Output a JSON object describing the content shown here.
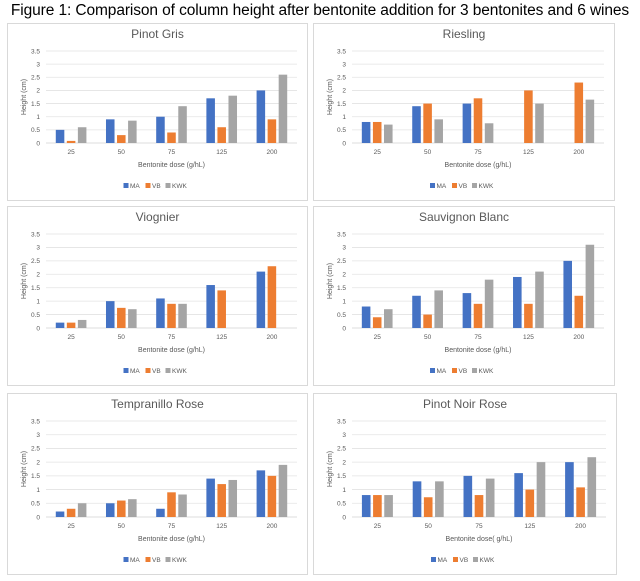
{
  "figure_title": "Figure 1: Comparison of column height after bentonite addition for 3 bentonites and 6 wines",
  "colors": {
    "MA": "#4472C4",
    "VB": "#ED7D31",
    "KWK": "#A5A5A5"
  },
  "chart_data": [
    {
      "type": "bar",
      "title": "Pinot Gris",
      "categories": [
        "25",
        "50",
        "75",
        "125",
        "200"
      ],
      "xlabel": "Bentonite dose (g/hL)",
      "ylabel": "Height (cm)",
      "ylim": [
        0,
        3.5
      ],
      "yticks": [
        "0",
        "0.5",
        "1",
        "1.5",
        "2",
        "2.5",
        "3",
        "3.5"
      ],
      "grid": true,
      "legend": "bottom",
      "series": [
        {
          "name": "MA",
          "values": [
            0.5,
            0.9,
            1.0,
            1.7,
            2.0
          ]
        },
        {
          "name": "VB",
          "values": [
            0.08,
            0.3,
            0.4,
            0.6,
            0.9
          ]
        },
        {
          "name": "KWK",
          "values": [
            0.6,
            0.85,
            1.4,
            1.8,
            2.6
          ]
        }
      ]
    },
    {
      "type": "bar",
      "title": "Riesling",
      "categories": [
        "25",
        "50",
        "75",
        "125",
        "200"
      ],
      "xlabel": "Bentonite dose (g/hL)",
      "ylabel": "Height (cm)",
      "ylim": [
        0,
        3.5
      ],
      "yticks": [
        "0",
        "0.5",
        "1",
        "1.5",
        "2",
        "2.5",
        "3",
        "3.5"
      ],
      "grid": true,
      "legend": "bottom",
      "series": [
        {
          "name": "MA",
          "values": [
            0.8,
            1.4,
            1.5,
            0,
            0
          ]
        },
        {
          "name": "VB",
          "values": [
            0.8,
            1.5,
            1.7,
            2.0,
            2.3
          ]
        },
        {
          "name": "KWK",
          "values": [
            0.7,
            0.9,
            0.75,
            1.5,
            1.65
          ]
        }
      ]
    },
    {
      "type": "bar",
      "title": "Viognier",
      "categories": [
        "25",
        "50",
        "75",
        "125",
        "200"
      ],
      "xlabel": "Bentonite dose (g/hL)",
      "ylabel": "Height (cm)",
      "ylim": [
        0,
        3.5
      ],
      "yticks": [
        "0",
        "0.5",
        "1",
        "1.5",
        "2",
        "2.5",
        "3",
        "3.5"
      ],
      "grid": true,
      "legend": "bottom",
      "series": [
        {
          "name": "MA",
          "values": [
            0.2,
            1.0,
            1.1,
            1.6,
            2.1
          ]
        },
        {
          "name": "VB",
          "values": [
            0.2,
            0.75,
            0.9,
            1.4,
            2.3
          ]
        },
        {
          "name": "KWK",
          "values": [
            0.3,
            0.7,
            0.9,
            0,
            0
          ]
        }
      ]
    },
    {
      "type": "bar",
      "title": "Sauvignon Blanc",
      "categories": [
        "25",
        "50",
        "75",
        "125",
        "200"
      ],
      "xlabel": "Bentonite dose (g/hL)",
      "ylabel": "Height (cm)",
      "ylim": [
        0,
        3.5
      ],
      "yticks": [
        "0",
        "0.5",
        "1",
        "1.5",
        "2",
        "2.5",
        "3",
        "3.5"
      ],
      "grid": true,
      "legend": "bottom",
      "series": [
        {
          "name": "MA",
          "values": [
            0.8,
            1.2,
            1.3,
            1.9,
            2.5
          ]
        },
        {
          "name": "VB",
          "values": [
            0.4,
            0.5,
            0.9,
            0.9,
            1.2
          ]
        },
        {
          "name": "KWK",
          "values": [
            0.7,
            1.4,
            1.8,
            2.1,
            3.1
          ]
        }
      ]
    },
    {
      "type": "bar",
      "title": "Tempranillo Rose",
      "categories": [
        "25",
        "50",
        "75",
        "125",
        "200"
      ],
      "xlabel": "Bentonite dose (g/hL)",
      "ylabel": "Height (cm)",
      "ylim": [
        0,
        3.5
      ],
      "yticks": [
        "0",
        "0.5",
        "1",
        "1.5",
        "2",
        "2.5",
        "3",
        "3.5"
      ],
      "grid": true,
      "legend": "bottom",
      "series": [
        {
          "name": "MA",
          "values": [
            0.2,
            0.5,
            0.3,
            1.4,
            1.7
          ]
        },
        {
          "name": "VB",
          "values": [
            0.3,
            0.6,
            0.9,
            1.2,
            1.5
          ]
        },
        {
          "name": "KWK",
          "values": [
            0.5,
            0.65,
            0.82,
            1.35,
            1.9
          ]
        }
      ]
    },
    {
      "type": "bar",
      "title": "Pinot Noir Rose",
      "categories": [
        "25",
        "50",
        "75",
        "125",
        "200"
      ],
      "xlabel": "Bentonite dose( g/hL)",
      "ylabel": "Height (cm)",
      "ylim": [
        0,
        3.5
      ],
      "yticks": [
        "0",
        "0.5",
        "1",
        "1.5",
        "2",
        "2.5",
        "3",
        "3.5"
      ],
      "grid": true,
      "legend": "bottom",
      "series": [
        {
          "name": "MA",
          "values": [
            0.8,
            1.3,
            1.5,
            1.6,
            2.0
          ]
        },
        {
          "name": "VB",
          "values": [
            0.8,
            0.72,
            0.8,
            1.0,
            1.08
          ]
        },
        {
          "name": "KWK",
          "values": [
            0.8,
            1.3,
            1.4,
            2.0,
            2.18
          ]
        }
      ]
    }
  ]
}
